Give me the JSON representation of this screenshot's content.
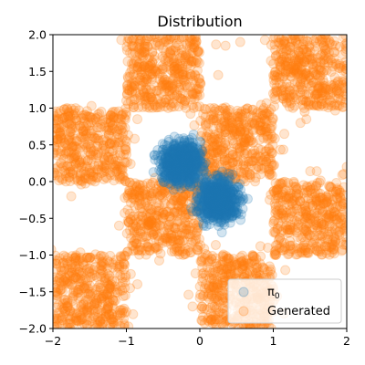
{
  "chart_data": {
    "type": "scatter",
    "title": "Distribution",
    "xlabel": "",
    "ylabel": "",
    "xlim": [
      -2,
      2
    ],
    "ylim": [
      -2,
      2
    ],
    "grid": false,
    "legend_position": "bottom-right",
    "x_ticks": [
      -2,
      -1,
      0,
      1,
      2
    ],
    "x_tick_labels": [
      "−2",
      "−1",
      "0",
      "1",
      "2"
    ],
    "y_ticks": [
      -2.0,
      -1.5,
      -1.0,
      -0.5,
      0.0,
      0.5,
      1.0,
      1.5,
      2.0
    ],
    "y_tick_labels": [
      "−2.0",
      "−1.5",
      "−1.0",
      "−0.5",
      "0.0",
      "0.5",
      "1.0",
      "1.5",
      "2.0"
    ],
    "series": [
      {
        "name": "π0",
        "legend_main": "π",
        "legend_sub": "0",
        "color": "#1f77b4",
        "alpha": 0.2,
        "distribution": "two gaussian clusters",
        "clusters": [
          {
            "center": [
              -0.25,
              0.25
            ],
            "std": 0.13
          },
          {
            "center": [
              0.25,
              -0.25
            ],
            "std": 0.13
          }
        ]
      },
      {
        "name": "Generated",
        "legend_main": "Generated",
        "legend_sub": "",
        "color": "#ff7f0e",
        "alpha": 0.2,
        "distribution": "checkerboard (filled squares of side 1)",
        "filled_squares": [
          {
            "x": [
              -1,
              0
            ],
            "y": [
              1,
              2
            ]
          },
          {
            "x": [
              1,
              2
            ],
            "y": [
              1,
              2
            ]
          },
          {
            "x": [
              -2,
              -1
            ],
            "y": [
              0,
              1
            ]
          },
          {
            "x": [
              0,
              1
            ],
            "y": [
              0,
              1
            ]
          },
          {
            "x": [
              -1,
              0
            ],
            "y": [
              -1,
              0
            ]
          },
          {
            "x": [
              1,
              2
            ],
            "y": [
              -1,
              0
            ]
          },
          {
            "x": [
              -2,
              -1
            ],
            "y": [
              -2,
              -1
            ]
          },
          {
            "x": [
              0,
              1
            ],
            "y": [
              -2,
              -1
            ]
          }
        ],
        "sample_points": [
          [
            -0.55,
            1.85
          ],
          [
            -0.3,
            1.6
          ],
          [
            -0.8,
            1.3
          ],
          [
            -0.2,
            1.1
          ],
          [
            -0.6,
            1.5
          ],
          [
            1.4,
            1.8
          ],
          [
            1.7,
            1.3
          ],
          [
            1.2,
            1.5
          ],
          [
            1.9,
            1.6
          ],
          [
            1.5,
            1.1
          ],
          [
            -1.6,
            0.6
          ],
          [
            -1.3,
            0.3
          ],
          [
            -1.8,
            0.8
          ],
          [
            -1.5,
            0.15
          ],
          [
            -1.2,
            0.7
          ],
          [
            0.5,
            0.5
          ],
          [
            0.3,
            0.8
          ],
          [
            0.8,
            0.2
          ],
          [
            0.2,
            0.15
          ],
          [
            0.7,
            0.9
          ],
          [
            -0.5,
            -0.5
          ],
          [
            -0.8,
            -0.3
          ],
          [
            -0.3,
            -0.8
          ],
          [
            -0.6,
            -0.9
          ],
          [
            -0.15,
            -0.2
          ],
          [
            1.5,
            -0.5
          ],
          [
            1.3,
            -0.2
          ],
          [
            1.8,
            -0.8
          ],
          [
            1.2,
            -0.7
          ],
          [
            1.7,
            -0.3
          ],
          [
            -1.5,
            -1.5
          ],
          [
            -1.7,
            -1.2
          ],
          [
            -1.2,
            -1.8
          ],
          [
            -1.4,
            -1.3
          ],
          [
            -1.8,
            -1.7
          ],
          [
            0.5,
            -1.5
          ],
          [
            0.3,
            -1.2
          ],
          [
            0.8,
            -1.8
          ],
          [
            0.6,
            -1.3
          ],
          [
            0.2,
            -1.7
          ],
          [
            0.35,
            1.85
          ],
          [
            1.15,
            0.65
          ],
          [
            -0.85,
            0.85
          ],
          [
            -1.1,
            -0.6
          ],
          [
            2.0,
            0.2
          ],
          [
            0.55,
            1.9
          ],
          [
            0.25,
            1.45
          ],
          [
            -1.0,
            1.1
          ],
          [
            -0.95,
            -1.45
          ],
          [
            1.45,
            0.85
          ],
          [
            -1.75,
            -0.2
          ],
          [
            -1.15,
            0.95
          ],
          [
            0.95,
            -0.25
          ],
          [
            -0.1,
            -1.7
          ],
          [
            1.0,
            1.2
          ]
        ]
      }
    ]
  }
}
